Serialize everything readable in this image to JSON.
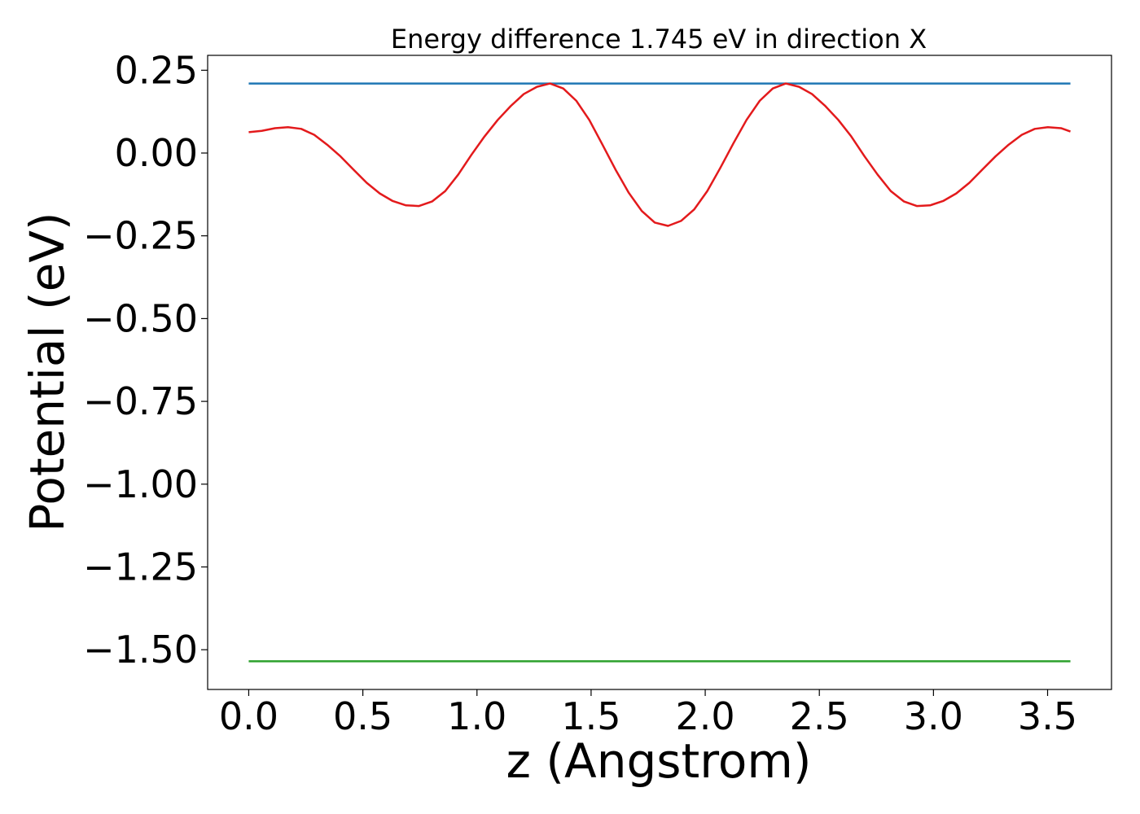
{
  "chart_data": {
    "type": "line",
    "title": "Energy difference 1.745 eV in direction X",
    "xlabel": "z (Angstrom)",
    "ylabel": "Potential (eV)",
    "xlim": [
      -0.18,
      3.78
    ],
    "ylim": [
      -1.62,
      0.295
    ],
    "x_ticks": [
      0.0,
      0.5,
      1.0,
      1.5,
      2.0,
      2.5,
      3.0,
      3.5
    ],
    "x_tick_labels": [
      "0.0",
      "0.5",
      "1.0",
      "1.5",
      "2.0",
      "2.5",
      "3.0",
      "3.5"
    ],
    "y_ticks": [
      0.25,
      0.0,
      -0.25,
      -0.5,
      -0.75,
      -1.0,
      -1.25,
      -1.5
    ],
    "y_tick_labels": [
      "0.25",
      "0.00",
      "−0.25",
      "−0.50",
      "−0.75",
      "−1.00",
      "−1.25",
      "−1.50"
    ],
    "grid": false,
    "series": [
      {
        "color": "#1f77b4",
        "x": [
          0.0,
          3.6
        ],
        "y": [
          0.21,
          0.21
        ]
      },
      {
        "color": "#2ca02c",
        "x": [
          0.0,
          3.6
        ],
        "y": [
          -1.535,
          -1.535
        ]
      },
      {
        "color": "#e31a1c",
        "x": [
          0.0,
          0.057,
          0.115,
          0.172,
          0.23,
          0.287,
          0.344,
          0.402,
          0.459,
          0.517,
          0.574,
          0.631,
          0.689,
          0.746,
          0.804,
          0.861,
          0.918,
          0.976,
          1.033,
          1.091,
          1.148,
          1.205,
          1.263,
          1.32,
          1.378,
          1.435,
          1.492,
          1.55,
          1.607,
          1.665,
          1.722,
          1.779,
          1.837,
          1.894,
          1.952,
          2.009,
          2.066,
          2.124,
          2.181,
          2.239,
          2.296,
          2.353,
          2.411,
          2.468,
          2.526,
          2.583,
          2.64,
          2.698,
          2.755,
          2.813,
          2.87,
          2.927,
          2.985,
          3.042,
          3.1,
          3.157,
          3.214,
          3.272,
          3.329,
          3.387,
          3.444,
          3.501,
          3.559,
          3.6
        ],
        "y": [
          0.063,
          0.067,
          0.075,
          0.078,
          0.073,
          0.055,
          0.025,
          -0.01,
          -0.05,
          -0.09,
          -0.122,
          -0.145,
          -0.158,
          -0.16,
          -0.146,
          -0.115,
          -0.065,
          -0.005,
          0.05,
          0.1,
          0.142,
          0.178,
          0.2,
          0.21,
          0.195,
          0.158,
          0.1,
          0.025,
          -0.05,
          -0.12,
          -0.175,
          -0.21,
          -0.22,
          -0.205,
          -0.17,
          -0.115,
          -0.045,
          0.03,
          0.1,
          0.158,
          0.195,
          0.21,
          0.2,
          0.178,
          0.142,
          0.1,
          0.05,
          -0.01,
          -0.065,
          -0.115,
          -0.146,
          -0.16,
          -0.158,
          -0.145,
          -0.122,
          -0.09,
          -0.05,
          -0.01,
          0.025,
          0.055,
          0.073,
          0.078,
          0.075,
          0.065
        ]
      }
    ]
  }
}
